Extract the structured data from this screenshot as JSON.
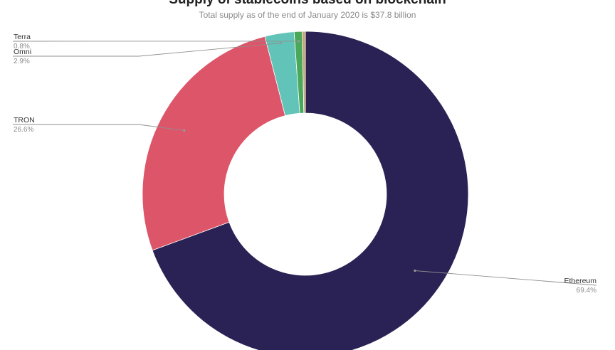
{
  "chart_data": {
    "type": "pie",
    "variant": "donut",
    "title": "Supply of stablecoins based on blockchain",
    "subtitle": "Total supply as of the end of January 2020 is $37.8 billion",
    "unit": "%",
    "slices": [
      {
        "name": "Ethereum",
        "value": 69.4,
        "label": "69.4%",
        "color": "#2a2254"
      },
      {
        "name": "TRON",
        "value": 26.6,
        "label": "26.6%",
        "color": "#dd5569"
      },
      {
        "name": "Omni",
        "value": 2.9,
        "label": "2.9%",
        "color": "#62c3b8"
      },
      {
        "name": "Terra",
        "value": 0.8,
        "label": "0.8%",
        "color": "#4aa85a"
      },
      {
        "name": "",
        "value": 0.3,
        "label": "",
        "color": "#c9a06a"
      }
    ],
    "legend": "none (slice labels with leader lines)"
  }
}
